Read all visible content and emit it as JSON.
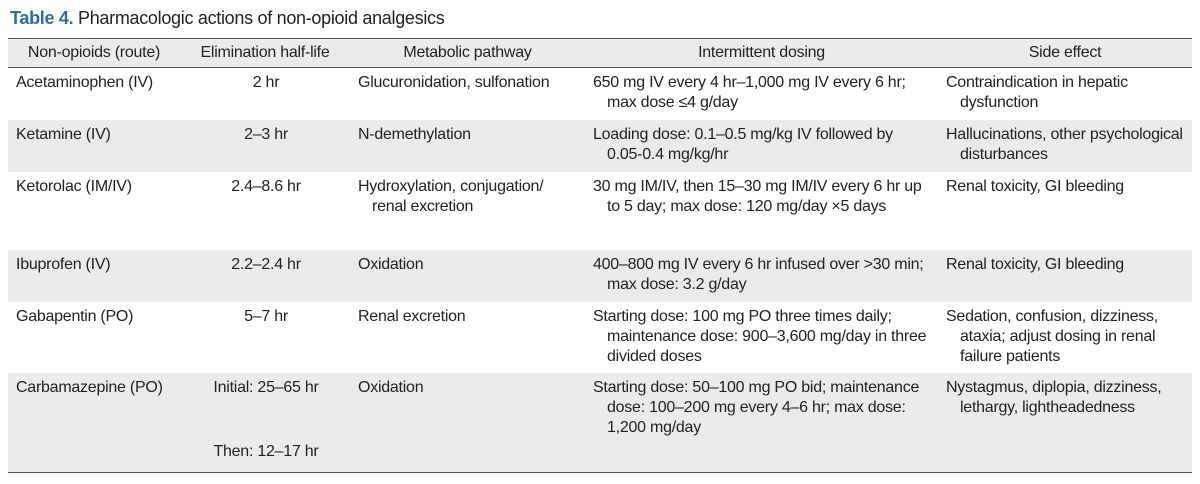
{
  "title": {
    "label": "Table 4.",
    "text": "Pharmacologic actions of non-opioid analgesics"
  },
  "table": {
    "columns": [
      "Non-opioids (route)",
      "Elimination half-life",
      "Metabolic pathway",
      "Intermittent dosing",
      "Side effect"
    ],
    "rows": [
      [
        "Acetaminophen (IV)",
        "2 hr",
        "Glucuronidation, sulfonation",
        "650 mg IV every 4 hr–1,000 mg IV every 6 hr; max dose ≤4 g/day",
        "Contraindication in hepatic dysfunction"
      ],
      [
        "Ketamine (IV)",
        "2–3 hr",
        "N-demethylation",
        "Loading dose: 0.1–0.5 mg/kg IV followed by 0.05-0.4 mg/kg/hr",
        "Hallucinations, other psychological disturbances"
      ],
      [
        "Ketorolac (IM/IV)",
        "2.4–8.6 hr",
        "Hydroxylation, conjugation/ renal excretion",
        "30 mg IM/IV, then 15–30 mg IM/IV every 6 hr up to 5 day; max dose: 120 mg/day ×5 days",
        "Renal toxicity, GI bleeding"
      ],
      [
        "Ibuprofen (IV)",
        "2.2–2.4 hr",
        "Oxidation",
        "400–800 mg IV every 6 hr infused over >30 min; max dose: 3.2 g/day",
        "Renal toxicity, GI bleeding"
      ],
      [
        "Gabapentin (PO)",
        "5–7 hr",
        "Renal excretion",
        "Starting dose: 100 mg PO three times daily; maintenance dose: 900–3,600 mg/day in three divided doses",
        "Sedation, confusion, dizziness, ataxia; adjust dosing in renal failure patients"
      ],
      [
        "Carbamazepine (PO)",
        [
          "Initial: 25–65 hr",
          "Then: 12–17 hr"
        ],
        "Oxidation",
        "Starting dose: 50–100 mg PO bid; maintenance dose: 100–200 mg every 4–6 hr; max dose: 1,200 mg/day",
        "Nystagmus, diplopia, dizziness, lethargy, lightheadedness"
      ]
    ]
  }
}
